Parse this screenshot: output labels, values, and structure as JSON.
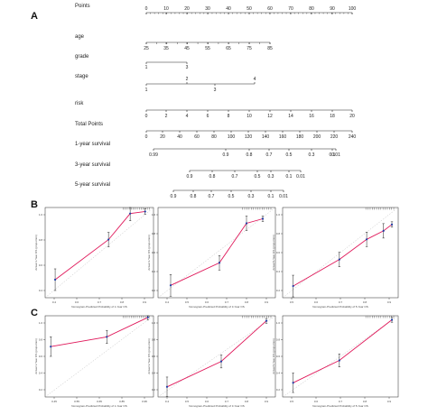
{
  "panels": {
    "a": "A",
    "b": "B",
    "c": "C"
  },
  "chart_data": [
    {
      "type": "nomogram",
      "rows": [
        {
          "label": "Points",
          "ticks": [
            "0",
            "10",
            "20",
            "30",
            "40",
            "50",
            "60",
            "70",
            "80",
            "90",
            "100"
          ]
        },
        {
          "label": "age",
          "ticks": [
            "25",
            "35",
            "45",
            "55",
            "65",
            "75",
            "85"
          ]
        },
        {
          "label": "grade",
          "ticks": [
            "1",
            "3"
          ]
        },
        {
          "label": "stage",
          "ticks": [
            "1",
            "2",
            "3",
            "4"
          ]
        },
        {
          "label": "risk",
          "ticks": [
            "0",
            "2",
            "4",
            "6",
            "8",
            "10",
            "12",
            "14",
            "16",
            "18",
            "20"
          ]
        },
        {
          "label": "Total Points",
          "ticks": [
            "0",
            "20",
            "40",
            "60",
            "80",
            "100",
            "120",
            "140",
            "160",
            "180",
            "200",
            "220",
            "240"
          ]
        },
        {
          "label": "1-year survival",
          "ticks": [
            "0.99",
            "0.9",
            "0.8",
            "0.7",
            "0.5",
            "0.3",
            "0.1",
            "0.01"
          ]
        },
        {
          "label": "3-year survival",
          "ticks": [
            "0.9",
            "0.8",
            "0.7",
            "0.5",
            "0.3",
            "0.1",
            "0.01"
          ]
        },
        {
          "label": "5-year survival",
          "ticks": [
            "0.9",
            "0.8",
            "0.7",
            "0.5",
            "0.3",
            "0.1",
            "0.01"
          ]
        }
      ]
    },
    {
      "type": "calibration",
      "panel": "B",
      "xlabel": "Nomogram-Predicted Probability of 1-Year OS",
      "ylabel": "Actual 1-Year OS (proportion)",
      "xticks": [
        "0.4",
        "0.6",
        "0.7",
        "0.8",
        "0.9"
      ],
      "yticks": [
        "0.4",
        "0.6",
        "0.8",
        "1.0"
      ],
      "points": [
        [
          0.41,
          0.64
        ],
        [
          0.73,
          0.84
        ],
        [
          0.86,
          0.97
        ],
        [
          0.95,
          0.98
        ]
      ]
    },
    {
      "type": "calibration",
      "panel": "B",
      "xlabel": "Nomogram-Predicted Probability of 3-Year OS",
      "ylabel": "Actual 3-Year OS (proportion)",
      "xticks": [
        "0.4",
        "0.5",
        "0.6",
        "0.7",
        "0.8",
        "0.9"
      ],
      "yticks": [
        "0.2",
        "0.4",
        "0.6",
        "0.8",
        "1.0"
      ],
      "points": [
        [
          0.42,
          0.31
        ],
        [
          0.69,
          0.51
        ],
        [
          0.84,
          0.86
        ],
        [
          0.93,
          0.9
        ]
      ]
    },
    {
      "type": "calibration",
      "panel": "B",
      "xlabel": "Nomogram-Predicted Probability of 5-Year OS",
      "ylabel": "Actual 5-Year OS (proportion)",
      "xticks": [
        "0.5",
        "0.6",
        "0.7",
        "0.8",
        "0.9"
      ],
      "yticks": [
        "0.2",
        "0.4",
        "0.6",
        "0.8",
        "1.0"
      ],
      "points": [
        [
          0.5,
          0.26
        ],
        [
          0.72,
          0.51
        ],
        [
          0.85,
          0.7
        ],
        [
          0.93,
          0.78
        ],
        [
          0.97,
          0.84
        ]
      ]
    },
    {
      "type": "calibration",
      "panel": "C",
      "xlabel": "Nomogram-Predicted Probability of 1-Year OS",
      "ylabel": "Actual 1-Year OS (proportion)",
      "xticks": [
        "0.45",
        "0.55",
        "0.65",
        "0.85",
        "0.95"
      ],
      "yticks": [
        "0.2",
        "0.4",
        "0.6",
        "0.8",
        "1.0"
      ],
      "points": [
        [
          0.45,
          0.62
        ],
        [
          0.75,
          0.74
        ],
        [
          0.97,
          0.98
        ]
      ]
    },
    {
      "type": "calibration",
      "panel": "C",
      "xlabel": "Nomogram-Predicted Probability of 3-Year OS",
      "ylabel": "Actual 3-Year OS (proportion)",
      "xticks": [
        "0.4",
        "0.5",
        "0.6",
        "0.7",
        "0.8",
        "0.9"
      ],
      "yticks": [
        "0.2",
        "0.4",
        "0.6",
        "0.8",
        "1.0"
      ],
      "points": [
        [
          0.4,
          0.3
        ],
        [
          0.7,
          0.55
        ],
        [
          0.95,
          0.95
        ]
      ]
    },
    {
      "type": "calibration",
      "panel": "C",
      "xlabel": "Nomogram-Predicted Probability of 5-Year OS",
      "ylabel": "Actual 5-Year OS (proportion)",
      "xticks": [
        "0.5",
        "0.6",
        "0.7",
        "0.8",
        "0.9"
      ],
      "yticks": [
        "0.2",
        "0.4",
        "0.6",
        "0.8",
        "1.0"
      ],
      "points": [
        [
          0.5,
          0.34
        ],
        [
          0.72,
          0.56
        ],
        [
          0.97,
          0.96
        ]
      ]
    }
  ],
  "colors": {
    "line": "#222222",
    "calibration": "#e0185a",
    "ideal": "#aaaaaa"
  }
}
